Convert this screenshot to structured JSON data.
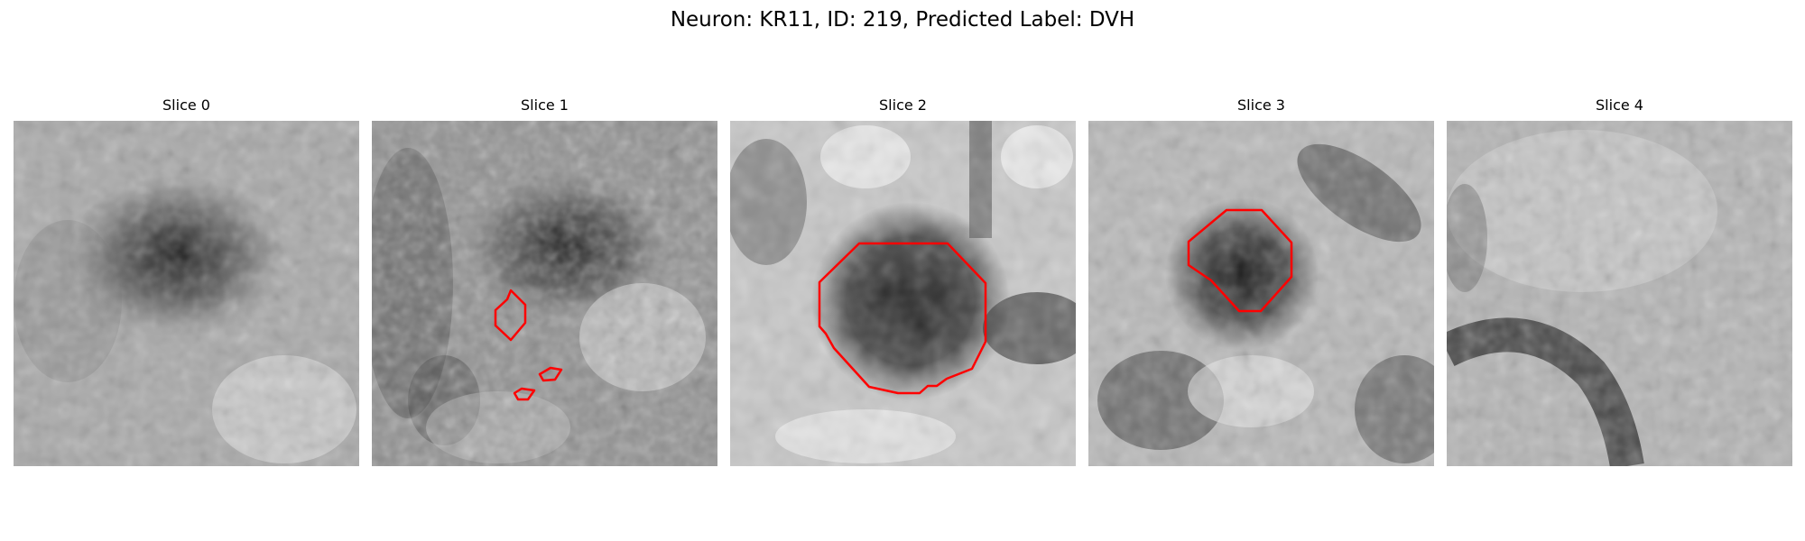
{
  "figure": {
    "title": "Neuron: KR11, ID: 219, Predicted Label: DVH"
  },
  "panels": [
    {
      "title": "Slice 0",
      "has_outline": false
    },
    {
      "title": "Slice 1",
      "has_outline": true
    },
    {
      "title": "Slice 2",
      "has_outline": true
    },
    {
      "title": "Slice 3",
      "has_outline": true
    },
    {
      "title": "Slice 4",
      "has_outline": false
    }
  ],
  "colors": {
    "outline": "#ff0000",
    "background": "#ffffff"
  }
}
